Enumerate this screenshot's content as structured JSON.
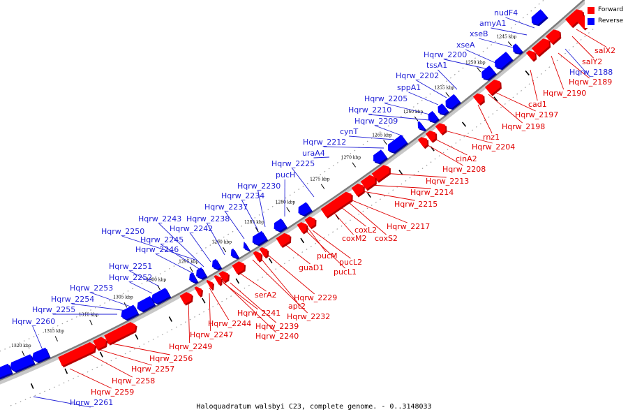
{
  "caption": "Haloquadratum walsbyi C23, complete genome. - 0..3148033",
  "legend": {
    "forward": {
      "label": "Forward",
      "color": "#ff0000"
    },
    "reverse": {
      "label": "Reverse",
      "color": "#0000ff"
    }
  },
  "colors": {
    "forward_fill": "#ff0000",
    "forward_dark": "#b40000",
    "reverse_fill": "#0000ff",
    "reverse_dark": "#0000a0",
    "backbone": "#808080"
  },
  "ticks": [
    "1245 kbp",
    "1250 kbp",
    "1255 kbp",
    "1260 kbp",
    "1265 kbp",
    "1270 kbp",
    "1275 kbp",
    "1280 kbp",
    "1285 kbp",
    "1290 kbp",
    "1295 kbp",
    "1300 kbp",
    "1305 kbp",
    "1310 kbp",
    "1315 kbp",
    "1320 kbp"
  ],
  "reverse_labels": [
    "nudF4",
    "amyA1",
    "xseB",
    "xseA",
    "Hqrw_2200",
    "tssA1",
    "Hqrw_2202",
    "sppA1",
    "Hqrw_2205",
    "Hqrw_2210",
    "Hqrw_2209",
    "cynT",
    "Hqrw_2212",
    "uraA4",
    "Hqrw_2225",
    "pucH",
    "Hqrw_2230",
    "Hqrw_2234",
    "Hqrw_2237",
    "Hqrw_2238",
    "Hqrw_2243",
    "Hqrw_2242",
    "Hqrw_2250",
    "Hqrw_2245",
    "Hqrw_2246",
    "Hqrw_2251",
    "Hqrw_2252",
    "Hqrw_2253",
    "Hqrw_2254",
    "Hqrw_2255",
    "Hqrw_2260",
    "Hqrw_2188",
    "Hqrw_2261"
  ],
  "forward_labels": [
    "salX2",
    "salY2",
    "Hqrw_2189",
    "Hqrw_2190",
    "cad1",
    "Hqrw_2197",
    "Hqrw_2198",
    "rnz1",
    "Hqrw_2204",
    "cinA2",
    "Hqrw_2208",
    "Hqrw_2213",
    "Hqrw_2214",
    "Hqrw_2215",
    "Hqrw_2217",
    "coxL2",
    "coxM2",
    "coxS2",
    "pucM",
    "pucL2",
    "pucL1",
    "guaD1",
    "Hqrw_2229",
    "serA2",
    "apt2",
    "Hqrw_2232",
    "Hqrw_2241",
    "Hqrw_2244",
    "Hqrw_2239",
    "Hqrw_2240",
    "Hqrw_2247",
    "Hqrw_2249",
    "Hqrw_2256",
    "Hqrw_2257",
    "Hqrw_2258",
    "Hqrw_2259"
  ]
}
